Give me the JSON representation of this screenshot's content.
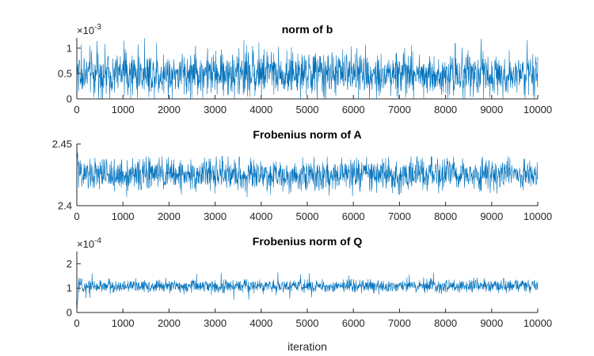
{
  "chart_data": [
    {
      "type": "line",
      "title": "norm of b",
      "xlabel": "",
      "ylabel": "",
      "xlim": [
        0,
        10000
      ],
      "ylim": [
        0,
        1.2
      ],
      "xticks": [
        "0",
        "1000",
        "2000",
        "3000",
        "4000",
        "5000",
        "6000",
        "7000",
        "8000",
        "9000",
        "10000"
      ],
      "yticks": [
        "0",
        "0.5",
        "1"
      ],
      "ytick_values": [
        0,
        0.5,
        1
      ],
      "y_multiplier": {
        "base": "×10",
        "exponent": "-3"
      },
      "grid": false,
      "series": [
        {
          "color": "#0072BD",
          "mean": 0.5,
          "band_low": 0.15,
          "band_high": 0.95,
          "peak_max": 1.2,
          "start_value": 0.6
        }
      ]
    },
    {
      "type": "line",
      "title": "Frobenius norm of A",
      "xlabel": "",
      "ylabel": "",
      "xlim": [
        0,
        10000
      ],
      "ylim": [
        2.4,
        2.45
      ],
      "xticks": [
        "0",
        "1000",
        "2000",
        "3000",
        "4000",
        "5000",
        "6000",
        "7000",
        "8000",
        "9000",
        "10000"
      ],
      "yticks": [
        "2.4",
        "2.45"
      ],
      "ytick_values": [
        2.4,
        2.45
      ],
      "grid": false,
      "series": [
        {
          "color": "#0072BD",
          "mean": 2.425,
          "band_low": 2.413,
          "band_high": 2.437,
          "peak_max": 2.44,
          "start_value": 2.45
        }
      ]
    },
    {
      "type": "line",
      "title": "Frobenius norm of Q",
      "xlabel": "iteration",
      "ylabel": "",
      "xlim": [
        0,
        10000
      ],
      "ylim": [
        0,
        2.5
      ],
      "xticks": [
        "0",
        "1000",
        "2000",
        "3000",
        "4000",
        "5000",
        "6000",
        "7000",
        "8000",
        "9000",
        "10000"
      ],
      "yticks": [
        "0",
        "1",
        "2"
      ],
      "ytick_values": [
        0,
        1,
        2
      ],
      "y_multiplier": {
        "base": "×10",
        "exponent": "-4"
      },
      "grid": false,
      "series": [
        {
          "color": "#0072BD",
          "mean": 1.08,
          "band_low": 0.85,
          "band_high": 1.35,
          "peak_max": 1.65,
          "start_value": 0
        }
      ]
    }
  ]
}
